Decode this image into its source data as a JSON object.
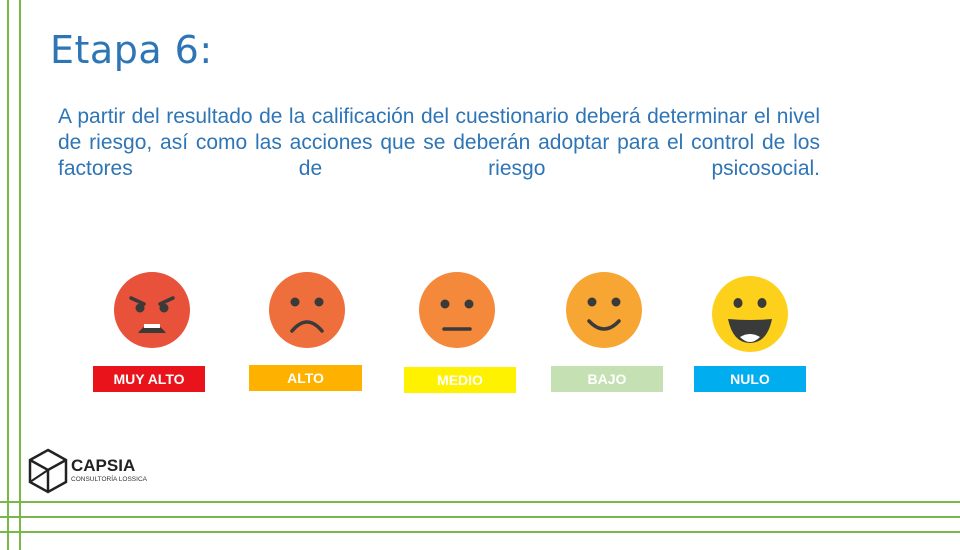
{
  "slide": {
    "title": "Etapa 6:",
    "body": "A partir del resultado de la calificación del cuestionario deberá determinar el nivel de riesgo, así como las acciones que se deberán adoptar para el control de los factores de riesgo psicosocial."
  },
  "risk_levels": [
    {
      "label": "MUY ALTO",
      "face": "angry-face-icon",
      "face_color": "#e8513a",
      "label_bg": "#e8131b"
    },
    {
      "label": "ALTO",
      "face": "sad-face-icon",
      "face_color": "#ee6e3c",
      "label_bg": "#ffb100"
    },
    {
      "label": "MEDIO",
      "face": "neutral-face-icon",
      "face_color": "#f4893b",
      "label_bg": "#fff200"
    },
    {
      "label": "BAJO",
      "face": "smiling-face-icon",
      "face_color": "#f7a634",
      "label_bg": "#c5e0b3"
    },
    {
      "label": "NULO",
      "face": "grinning-face-icon",
      "face_color": "#fdd01b",
      "label_bg": "#00aeef"
    }
  ],
  "logo": {
    "name": "CAPSIA",
    "subtitle": "CONSULTORÍA LOSSICA",
    "icon": "capsia-cube-logo"
  },
  "colors": {
    "title": "#2e75b6",
    "border_lines": "#7ab648"
  }
}
